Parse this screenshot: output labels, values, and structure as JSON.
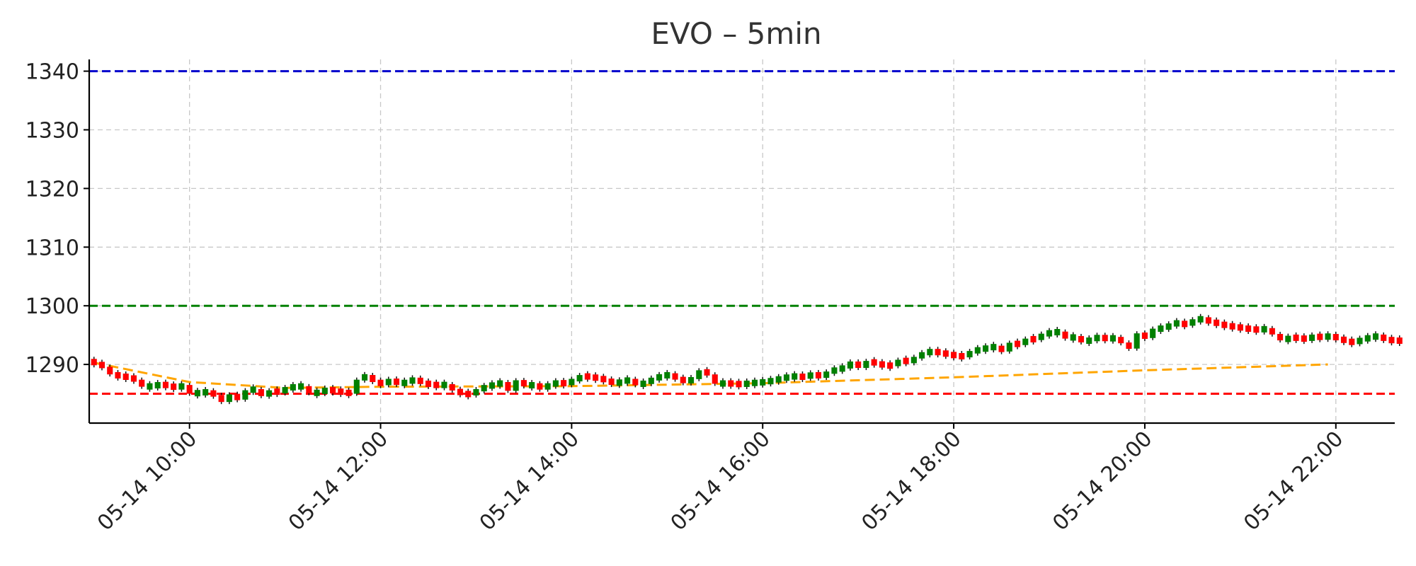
{
  "chart_data": {
    "type": "candlestick",
    "title": "EVO – 5min",
    "xlabel": "",
    "ylabel": "",
    "x_range": [
      "2024-05-14 08:57",
      "2024-05-14 22:37"
    ],
    "ylim": [
      1280,
      1342
    ],
    "y_ticks": [
      1290,
      1300,
      1310,
      1320,
      1330,
      1340
    ],
    "y_tick_labels": [
      "1290",
      "1300",
      "1310",
      "1320",
      "1330",
      "1340"
    ],
    "x_ticks": [
      "2024-05-14 10:00",
      "2024-05-14 12:00",
      "2024-05-14 14:00",
      "2024-05-14 16:00",
      "2024-05-14 18:00",
      "2024-05-14 20:00",
      "2024-05-14 22:00"
    ],
    "x_tick_labels": [
      "05-14 10:00",
      "05-14 12:00",
      "05-14 14:00",
      "05-14 16:00",
      "05-14 18:00",
      "05-14 20:00",
      "05-14 22:00"
    ],
    "grid": true,
    "colors": {
      "up": "#008000",
      "down": "#ff0000",
      "trend": "#ffa500",
      "resistance": "#0000cd",
      "mid_level": "#008000",
      "support": "#ff0000"
    },
    "hlines": [
      {
        "value": 1340,
        "color": "#0000cd"
      },
      {
        "value": 1300,
        "color": "#008000"
      },
      {
        "value": 1285,
        "color": "#ff0000"
      }
    ],
    "trend_line": {
      "times": [
        "2024-05-14 09:00",
        "2024-05-14 10:00",
        "2024-05-14 11:00",
        "2024-05-14 12:00",
        "2024-05-14 14:00",
        "2024-05-14 16:00",
        "2024-05-14 18:00",
        "2024-05-14 20:00",
        "2024-05-14 21:55"
      ],
      "values": [
        1290.3,
        1287.0,
        1286.0,
        1286.2,
        1286.3,
        1286.8,
        1287.8,
        1289.0,
        1290.0
      ]
    },
    "candles": {
      "start": "2024-05-14 09:00",
      "interval_minutes": 5,
      "closes": [
        1290.2,
        1289.6,
        1288.3,
        1288.0,
        1287.8,
        1287.4,
        1286.2,
        1286.3,
        1286.6,
        1286.4,
        1286.0,
        1286.5,
        1285.0,
        1285.2,
        1285.3,
        1284.8,
        1283.6,
        1284.9,
        1284.0,
        1285.6,
        1285.8,
        1284.6,
        1285.5,
        1285.2,
        1286.0,
        1286.2,
        1286.3,
        1285.1,
        1285.2,
        1285.8,
        1285.4,
        1285.3,
        1285.0,
        1287.4,
        1288.2,
        1287.0,
        1286.7,
        1287.3,
        1286.8,
        1286.9,
        1287.6,
        1286.8,
        1286.6,
        1286.4,
        1286.6,
        1285.6,
        1285.0,
        1284.9,
        1285.6,
        1286.3,
        1286.5,
        1287.0,
        1285.5,
        1287.3,
        1286.3,
        1286.6,
        1285.9,
        1286.6,
        1286.9,
        1286.7,
        1287.3,
        1288.0,
        1287.9,
        1287.6,
        1287.4,
        1286.7,
        1287.1,
        1287.4,
        1286.6,
        1286.8,
        1287.6,
        1288.0,
        1288.3,
        1287.6,
        1287.1,
        1287.5,
        1289.0,
        1288.3,
        1286.7,
        1286.8,
        1286.7,
        1286.6,
        1286.8,
        1286.9,
        1287.0,
        1287.3,
        1287.6,
        1287.9,
        1288.0,
        1287.8,
        1288.4,
        1287.9,
        1288.6,
        1289.3,
        1289.3,
        1290.5,
        1289.4,
        1290.6,
        1290.1,
        1289.9,
        1289.7,
        1290.8,
        1290.4,
        1291.1,
        1292.0,
        1292.2,
        1292.0,
        1291.7,
        1291.5,
        1291.3,
        1292.2,
        1292.6,
        1292.8,
        1293.1,
        1292.2,
        1293.7,
        1293.3,
        1294.4,
        1294.2,
        1295.2,
        1295.4,
        1295.6,
        1294.4,
        1294.8,
        1293.8,
        1294.3,
        1294.7,
        1294.3,
        1294.6,
        1293.7,
        1292.7,
        1295.3,
        1294.5,
        1296.1,
        1296.1,
        1296.8,
        1297.2,
        1296.6,
        1297.7,
        1297.7,
        1297.3,
        1296.9,
        1296.6,
        1296.4,
        1296.2,
        1296.0,
        1295.9,
        1296.1,
        1295.2,
        1294.1,
        1294.6,
        1294.5,
        1294.3,
        1294.8,
        1294.6,
        1294.9,
        1294.4,
        1294.0,
        1293.7,
        1294.3,
        1294.6,
        1294.9,
        1294.2,
        1294.1,
        1294.0
      ]
    }
  }
}
